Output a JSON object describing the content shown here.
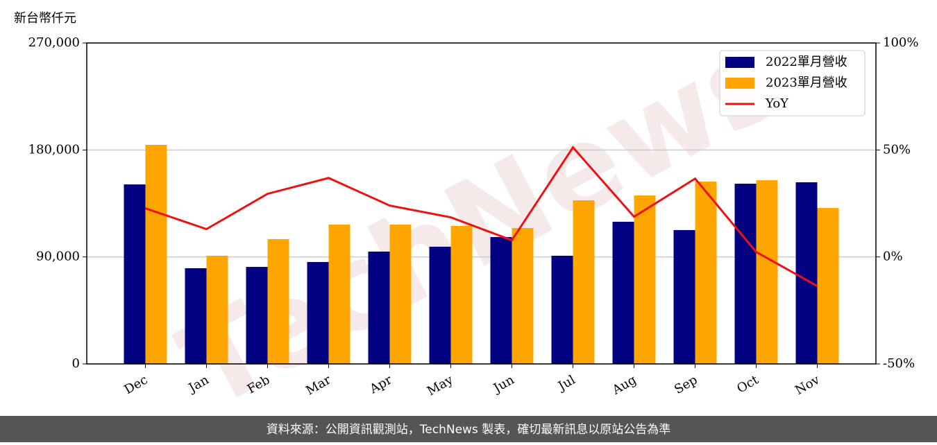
{
  "chart_data": {
    "type": "bar-line",
    "unit_label": "新台幣仟元",
    "watermark": "TechNews",
    "footer": "資料來源：公開資訊觀測站，TechNews 製表，確切最新訊息以原站公告為準",
    "categories": [
      "Dec",
      "Jan",
      "Feb",
      "Mar",
      "Apr",
      "May",
      "Jun",
      "Jul",
      "Aug",
      "Sep",
      "Oct",
      "Nov"
    ],
    "series": [
      {
        "name": "2022單月營收",
        "color": "#000080",
        "kind": "bar",
        "values": [
          151000,
          80500,
          81600,
          85700,
          94500,
          98600,
          106700,
          91000,
          119600,
          112600,
          151600,
          152800
        ]
      },
      {
        "name": "2023單月營收",
        "color": "#ffa500",
        "kind": "bar",
        "values": [
          184300,
          91000,
          105000,
          117200,
          117200,
          116100,
          114300,
          137600,
          141700,
          153400,
          154500,
          131200
        ]
      },
      {
        "name": "YoY",
        "color": "#ee1111",
        "kind": "line",
        "axis": "y2",
        "values": [
          22.7,
          13.0,
          29.5,
          36.9,
          24.0,
          18.5,
          7.8,
          51.2,
          18.8,
          36.6,
          2.3,
          -13.6
        ]
      }
    ],
    "ylim": [
      0,
      270000
    ],
    "yticks": [
      0,
      {
        "value": 90000,
        "label": "90,000"
      },
      {
        "value": 180000,
        "label": "180,000"
      },
      {
        "value": 270000,
        "label": "270,000"
      }
    ],
    "y2lim": [
      -50,
      100
    ],
    "y2ticks": [
      {
        "value": -50,
        "label": "-50%"
      },
      {
        "value": 0,
        "label": "0%"
      },
      {
        "value": 50,
        "label": "50%"
      },
      {
        "value": 100,
        "label": "100%"
      }
    ],
    "grid": true,
    "legend": "upper right"
  }
}
